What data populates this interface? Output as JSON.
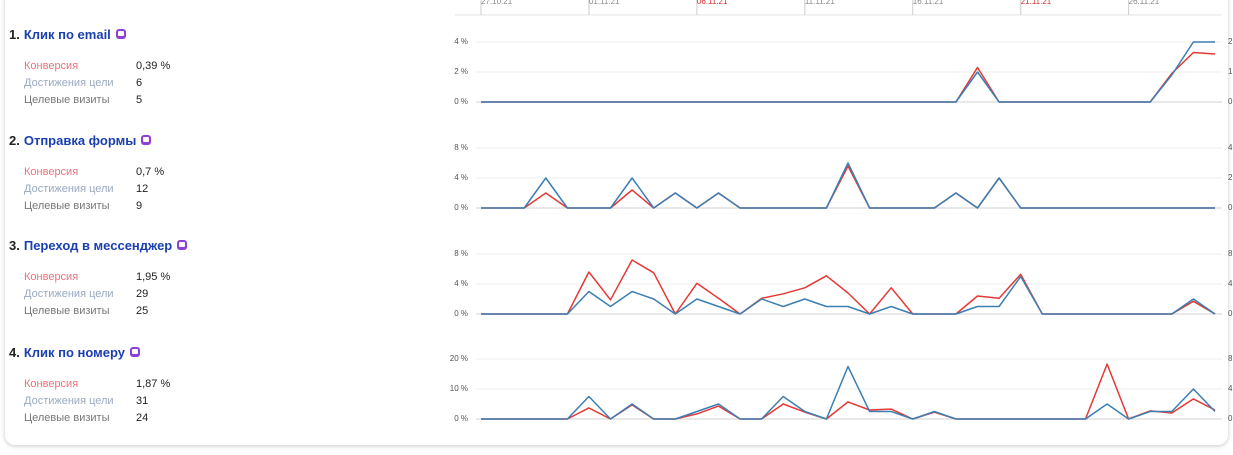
{
  "goals": [
    {
      "number": "1.",
      "title": "Клик по email",
      "metrics": [
        {
          "label": "Конверсия",
          "value": "0,39 %"
        },
        {
          "label": "Достижения цели",
          "value": "6"
        },
        {
          "label": "Целевые визиты",
          "value": "5"
        }
      ]
    },
    {
      "number": "2.",
      "title": "Отправка формы",
      "metrics": [
        {
          "label": "Конверсия",
          "value": "0,7 %"
        },
        {
          "label": "Достижения цели",
          "value": "12"
        },
        {
          "label": "Целевые визиты",
          "value": "9"
        }
      ]
    },
    {
      "number": "3.",
      "title": "Переход в мессенджер",
      "metrics": [
        {
          "label": "Конверсия",
          "value": "1,95 %"
        },
        {
          "label": "Достижения цели",
          "value": "29"
        },
        {
          "label": "Целевые визиты",
          "value": "25"
        }
      ]
    },
    {
      "number": "4.",
      "title": "Клик по номеру",
      "metrics": [
        {
          "label": "Конверсия",
          "value": "1,87 %"
        },
        {
          "label": "Достижения цели",
          "value": "31"
        },
        {
          "label": "Целевые визиты",
          "value": "24"
        }
      ]
    }
  ],
  "chart_data": [
    {
      "type": "line",
      "xlim": [
        0,
        34
      ],
      "xticks": [
        {
          "value": 0,
          "label": "27.10.21"
        },
        {
          "value": 5,
          "label": "01.11.21"
        },
        {
          "value": 10,
          "label": "06.11.21"
        },
        {
          "value": 15,
          "label": "11.11.21"
        },
        {
          "value": 20,
          "label": "16.11.21"
        },
        {
          "value": 25,
          "label": "21.11.21"
        },
        {
          "value": 30,
          "label": "26.11.21"
        }
      ],
      "xtick_colors": [
        "#888888",
        "#888888",
        "#d32f2f",
        "#888888",
        "#888888",
        "#d32f2f",
        "#888888"
      ],
      "ylim": [
        0,
        4
      ],
      "yticks": [
        {
          "value": 0,
          "label": "0 %"
        },
        {
          "value": 2,
          "label": "2 %"
        },
        {
          "value": 4,
          "label": "4 %"
        }
      ],
      "y2lim": [
        0,
        2
      ],
      "y2ticks": [
        0,
        1,
        2
      ],
      "grid": true,
      "series": [
        {
          "color": "#e53935",
          "values": [
            0,
            0,
            0,
            0,
            0,
            0,
            0,
            0,
            0,
            0,
            0,
            0,
            0,
            0,
            0,
            0,
            0,
            0,
            0,
            0,
            0,
            0,
            0,
            2.3,
            0,
            0,
            0,
            0,
            0,
            0,
            0,
            0,
            1.9,
            3.3,
            3.2
          ]
        },
        {
          "color": "#3b7fb3",
          "axis": "y2",
          "values": [
            0,
            0,
            0,
            0,
            0,
            0,
            0,
            0,
            0,
            0,
            0,
            0,
            0,
            0,
            0,
            0,
            0,
            0,
            0,
            0,
            0,
            0,
            0,
            1,
            0,
            0,
            0,
            0,
            0,
            0,
            0,
            0,
            0.9,
            2,
            2
          ]
        }
      ]
    },
    {
      "type": "line",
      "xlim": [
        0,
        34
      ],
      "ylim": [
        0,
        8
      ],
      "yticks": [
        {
          "value": 0,
          "label": "0 %"
        },
        {
          "value": 4,
          "label": "4 %"
        },
        {
          "value": 8,
          "label": "8 %"
        }
      ],
      "y2lim": [
        0,
        4
      ],
      "y2ticks": [
        0,
        2,
        4
      ],
      "grid": true,
      "series": [
        {
          "color": "#e53935",
          "values": [
            0,
            0,
            0,
            2,
            0,
            0,
            0,
            2.4,
            0,
            2,
            0,
            2,
            0,
            0,
            0,
            0,
            0,
            5.6,
            0,
            0,
            0,
            0,
            2,
            0,
            4,
            0,
            0,
            0,
            0,
            0,
            0,
            0,
            0,
            0,
            0
          ]
        },
        {
          "color": "#3b7fb3",
          "axis": "y2",
          "values": [
            0,
            0,
            0,
            2,
            0,
            0,
            0,
            2,
            0,
            1,
            0,
            1,
            0,
            0,
            0,
            0,
            0,
            3,
            0,
            0,
            0,
            0,
            1,
            0,
            2,
            0,
            0,
            0,
            0,
            0,
            0,
            0,
            0,
            0,
            0
          ]
        }
      ]
    },
    {
      "type": "line",
      "xlim": [
        0,
        34
      ],
      "ylim": [
        0,
        8
      ],
      "yticks": [
        {
          "value": 0,
          "label": "0 %"
        },
        {
          "value": 4,
          "label": "4 %"
        },
        {
          "value": 8,
          "label": "8 %"
        }
      ],
      "y2lim": [
        0,
        8
      ],
      "y2ticks": [
        0,
        4,
        8
      ],
      "grid": true,
      "series": [
        {
          "color": "#e53935",
          "values": [
            0,
            0,
            0,
            0,
            0,
            5.6,
            1.9,
            7.2,
            5.5,
            0,
            4.1,
            2.1,
            0,
            2.1,
            2.7,
            3.5,
            5.1,
            2.8,
            0,
            3.5,
            0,
            0,
            0,
            2.4,
            2.1,
            5.3,
            0,
            0,
            0,
            0,
            0,
            0,
            0,
            1.7,
            0
          ]
        },
        {
          "color": "#3b7fb3",
          "axis": "y2",
          "values": [
            0,
            0,
            0,
            0,
            0,
            3,
            1,
            3,
            2,
            0,
            2,
            1,
            0,
            2,
            1,
            2,
            1,
            1,
            0,
            1,
            0,
            0,
            0,
            1,
            1,
            5,
            0,
            0,
            0,
            0,
            0,
            0,
            0,
            2,
            0
          ]
        }
      ]
    },
    {
      "type": "line",
      "xlim": [
        0,
        34
      ],
      "ylim": [
        0,
        20
      ],
      "yticks": [
        {
          "value": 0,
          "label": "0 %"
        },
        {
          "value": 10,
          "label": "10 %"
        },
        {
          "value": 20,
          "label": "20 %"
        }
      ],
      "y2lim": [
        0,
        8
      ],
      "y2ticks": [
        0,
        4,
        8
      ],
      "grid": true,
      "series": [
        {
          "color": "#e53935",
          "values": [
            0,
            0,
            0,
            0,
            0,
            3.7,
            0,
            4.7,
            0,
            0,
            1.7,
            4.3,
            0,
            0,
            5,
            2.3,
            0,
            5.7,
            3,
            3.3,
            0,
            2.3,
            0,
            0,
            0,
            0,
            0,
            0,
            0,
            18.3,
            0,
            2.7,
            2,
            6.7,
            3
          ]
        },
        {
          "color": "#3b7fb3",
          "axis": "y2",
          "values": [
            0,
            0,
            0,
            0,
            0,
            3,
            0,
            2,
            0,
            0,
            1,
            2,
            0,
            0,
            3,
            1,
            0,
            7,
            1,
            1,
            0,
            1,
            0,
            0,
            0,
            0,
            0,
            0,
            0,
            2,
            0,
            1,
            1,
            4,
            1
          ]
        }
      ]
    }
  ]
}
